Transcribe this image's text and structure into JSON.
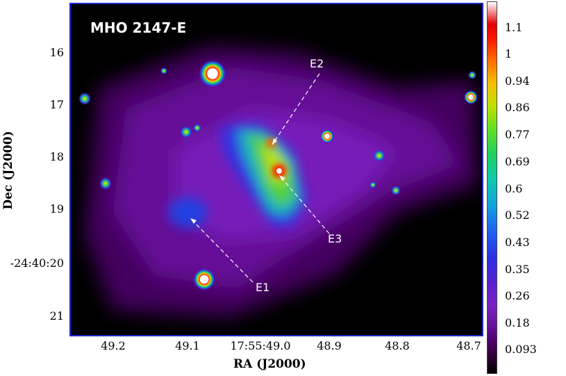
{
  "title": "MHO 2147-E",
  "sources": [
    "E1",
    "E2",
    "E3"
  ],
  "y_axis": {
    "label": "Dec (J2000)",
    "ticks": [
      "16",
      "17",
      "18",
      "19",
      "-24:40:20",
      "21"
    ]
  },
  "x_axis": {
    "label": "RA (J2000)",
    "ticks": [
      "49.2",
      "49.1",
      "17:55:49.0",
      "48.9",
      "48.8",
      "48.7"
    ]
  },
  "colorbar": {
    "ticks": [
      "1.1",
      "1",
      "0.94",
      "0.86",
      "0.77",
      "0.69",
      "0.6",
      "0.52",
      "0.43",
      "0.35",
      "0.26",
      "0.18",
      "0.093"
    ]
  }
}
